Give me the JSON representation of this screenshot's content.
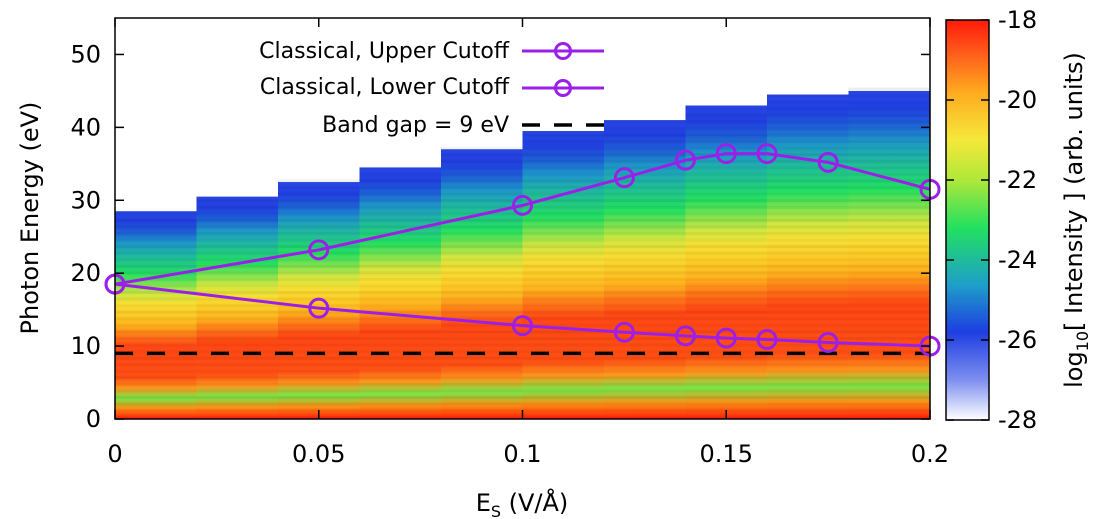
{
  "chart_data": {
    "type": "heatmap",
    "xlabel_main": "E",
    "xlabel_sub": "S",
    "xlabel_unit": " (V/Å)",
    "ylabel": "Photon Energy (eV)",
    "colorbar_label_prefix": "log",
    "colorbar_label_sub": "10",
    "colorbar_label_rest": "[ Intensity ] (arb. units)",
    "xlim": [
      0,
      0.2
    ],
    "ylim": [
      0,
      55
    ],
    "x_ticks": [
      0,
      0.05,
      0.1,
      0.15,
      0.2
    ],
    "x_tick_labels": [
      "0",
      "0.05",
      "0.1",
      "0.15",
      "0.2"
    ],
    "y_ticks": [
      0,
      10,
      20,
      30,
      40,
      50
    ],
    "y_tick_labels": [
      "0",
      "10",
      "20",
      "30",
      "40",
      "50"
    ],
    "colorbar_range": [
      -28,
      -18
    ],
    "colorbar_ticks": [
      -28,
      -26,
      -24,
      -22,
      -20,
      -18
    ],
    "colorbar_tick_labels": [
      "-28",
      "-26",
      "-24",
      "-22",
      "-20",
      "-18"
    ],
    "heatmap_columns": {
      "x_edges": [
        0,
        0.02,
        0.04,
        0.06,
        0.08,
        0.1,
        0.12,
        0.14,
        0.16,
        0.18,
        0.2
      ],
      "max_energy": [
        28.5,
        30.5,
        32.5,
        34.5,
        37,
        39.5,
        41,
        43,
        44.5,
        45
      ]
    },
    "series": [
      {
        "name": "Classical, Upper Cutoff",
        "color": "#9b1fe8",
        "x": [
          0,
          0.05,
          0.1,
          0.125,
          0.14,
          0.15,
          0.16,
          0.175,
          0.2
        ],
        "y": [
          18.5,
          23.2,
          29.3,
          33.1,
          35.5,
          36.4,
          36.4,
          35.2,
          31.5
        ]
      },
      {
        "name": "Classical, Lower Cutoff",
        "color": "#9b1fe8",
        "x": [
          0,
          0.05,
          0.1,
          0.125,
          0.14,
          0.15,
          0.16,
          0.175,
          0.2
        ],
        "y": [
          18.5,
          15.2,
          12.8,
          11.9,
          11.4,
          11.1,
          10.9,
          10.5,
          10.0
        ]
      },
      {
        "name": "Band gap = 9 eV",
        "color": "#000000",
        "y_constant": 9
      }
    ],
    "legend_position": "top-left"
  }
}
